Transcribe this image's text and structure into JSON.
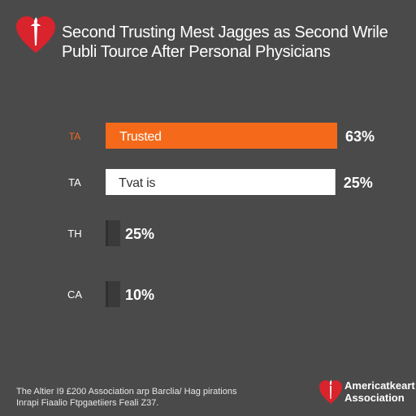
{
  "header": {
    "title_line1": "Second Trusting Mest Jagges as Second Wrile",
    "title_line2": "Publi Tource After Personal Physicians"
  },
  "footer": {
    "source_line1": "The Altier I9 £200 Association arp Barclia/ Hag pirations",
    "source_line2": "Inrapi Fiaalio Ftpgaetiiers Feali Z37.",
    "org_line1": "Americatkeart",
    "org_line2": "Association"
  },
  "colors": {
    "background": "#4a4a4a",
    "accent_orange": "#f46a1a",
    "bar_white": "#ffffff",
    "bar_dark": "#3a3a3a",
    "brand_red": "#d9232d"
  },
  "chart_data": {
    "type": "bar",
    "orientation": "horizontal",
    "title": "Second Trusting Mest Jagges as Second Wrile Publi Tource After Personal Physicians",
    "categories": [
      "TA",
      "TA",
      "TH",
      "CA"
    ],
    "bar_labels": [
      "Trusted",
      "Tvat is",
      "",
      ""
    ],
    "values": [
      63,
      25,
      25,
      10
    ],
    "value_labels": [
      "63%",
      "25%",
      "25%",
      "10%"
    ],
    "bar_colors": [
      "#f46a1a",
      "#ffffff",
      "#3a3a3a",
      "#3a3a3a"
    ],
    "xlim": [
      0,
      63
    ],
    "grid": false,
    "legend": "none"
  }
}
